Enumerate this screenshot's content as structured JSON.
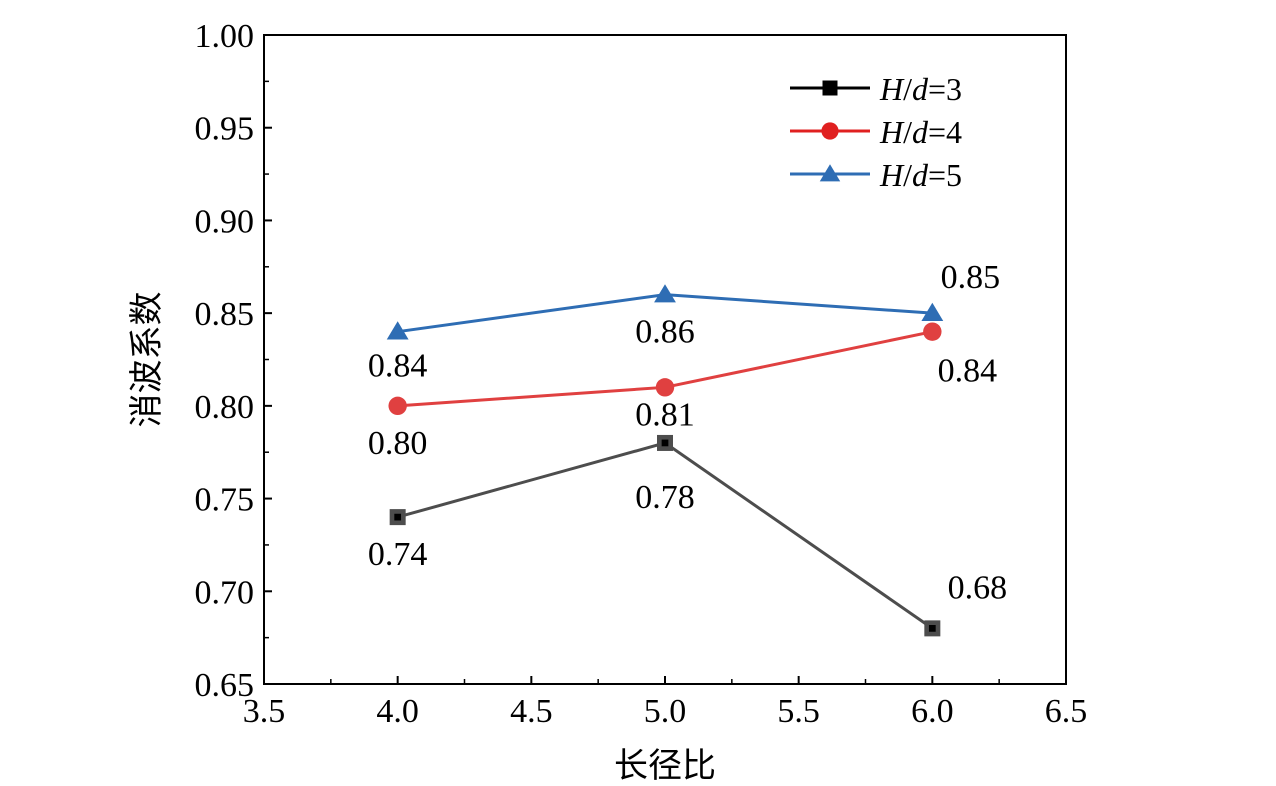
{
  "chart_data": {
    "type": "line",
    "title": "",
    "xlabel": "长径比",
    "ylabel": "消波系数",
    "xlim": [
      3.5,
      6.5
    ],
    "ylim": [
      0.65,
      1.0
    ],
    "xticks": [
      "3.5",
      "4.0",
      "4.5",
      "5.0",
      "5.5",
      "6.0",
      "6.5"
    ],
    "yticks": [
      "0.65",
      "0.70",
      "0.75",
      "0.80",
      "0.85",
      "0.90",
      "0.95",
      "1.00"
    ],
    "grid": false,
    "legend_position": "top-right",
    "x": [
      4.0,
      5.0,
      6.0
    ],
    "series": [
      {
        "name": "H/d=3",
        "legend_prefix": "H",
        "legend_sep": "/",
        "legend_mid": "d",
        "legend_suffix": "=3",
        "values": [
          0.74,
          0.78,
          0.68
        ],
        "labels": [
          "0.74",
          "0.78",
          "0.68"
        ],
        "marker": "square",
        "line_color": "#4d4d4d",
        "marker_color": "#4d4d4d",
        "legend_line_color": "#000000",
        "legend_marker_color": "#000000"
      },
      {
        "name": "H/d=4",
        "legend_prefix": "H",
        "legend_sep": "/",
        "legend_mid": "d",
        "legend_suffix": "=4",
        "values": [
          0.8,
          0.81,
          0.84
        ],
        "labels": [
          "0.80",
          "0.81",
          "0.84"
        ],
        "marker": "circle",
        "line_color": "#e04040",
        "marker_color": "#e04040",
        "legend_line_color": "#e02020",
        "legend_marker_color": "#e02020"
      },
      {
        "name": "H/d=5",
        "legend_prefix": "H",
        "legend_sep": "/",
        "legend_mid": "d",
        "legend_suffix": "=5",
        "values": [
          0.84,
          0.86,
          0.85
        ],
        "labels": [
          "0.84",
          "0.86",
          "0.85"
        ],
        "marker": "triangle",
        "line_color": "#2e6db4",
        "marker_color": "#2e6db4",
        "legend_line_color": "#2e6db4",
        "legend_marker_color": "#2e6db4"
      }
    ]
  }
}
